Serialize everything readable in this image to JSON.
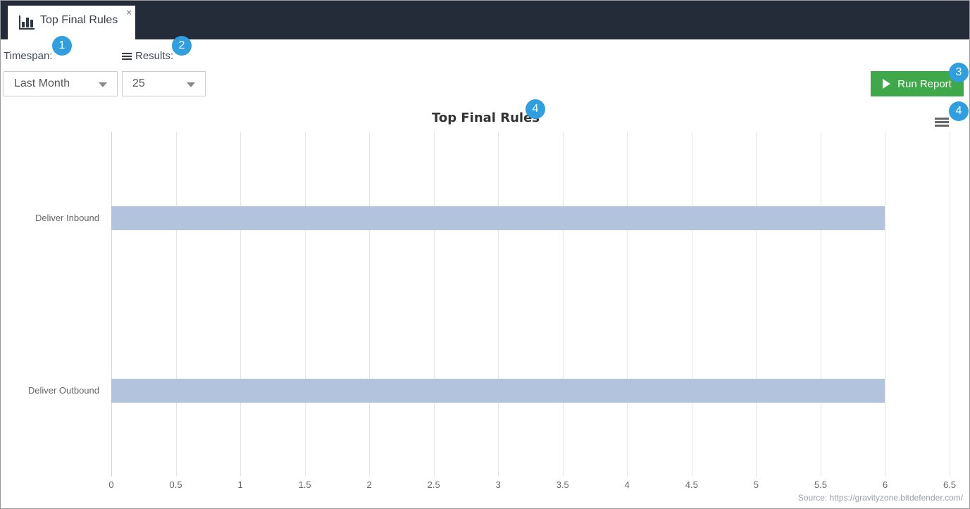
{
  "header": {
    "tab": {
      "label": "Top Final Rules",
      "close_glyph": "×"
    }
  },
  "controls": {
    "timespan_label": "Timespan:",
    "timespan_value": "Last Month",
    "results_label": "Results:",
    "results_value": "25",
    "run_report_label": "Run Report"
  },
  "annotations": {
    "badges": [
      "1",
      "2",
      "3",
      "4",
      "4"
    ]
  },
  "chart_data": {
    "type": "bar",
    "orientation": "horizontal",
    "title": "Top Final Rules",
    "categories": [
      "Deliver Inbound",
      "Deliver Outbound"
    ],
    "values": [
      6,
      6
    ],
    "xlabel": "",
    "ylabel": "",
    "value_axis": {
      "min": 0,
      "max": 6.5,
      "step": 0.5
    },
    "grid": true,
    "legend": "none",
    "bar_color": "#b1c3dd"
  },
  "footer": {
    "source": "Source: https://gravityzone.bitdefender.com/"
  },
  "colors": {
    "header_bg": "#242c39",
    "badge_blue": "#2f9fe0",
    "run_report_green": "#3ea84a",
    "bar_fill": "#b1c3dd",
    "gridline": "#e6e6e6",
    "axis_line": "#ccd6eb"
  }
}
